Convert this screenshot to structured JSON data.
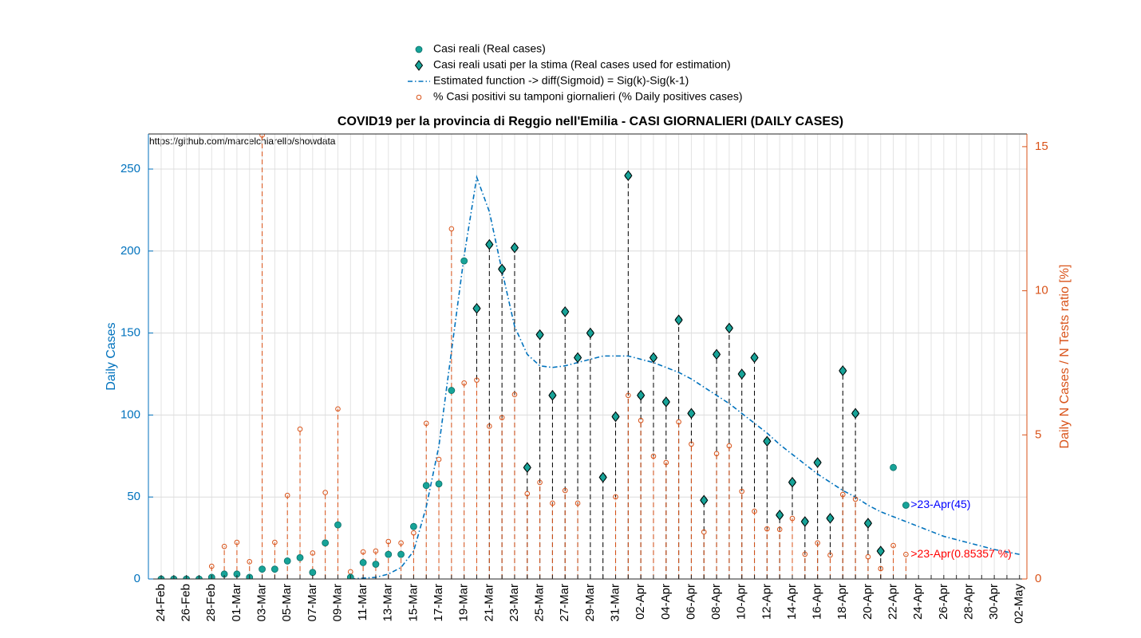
{
  "chart_data": {
    "type": "combo",
    "title": "COVID19 per la provincia di Reggio nell'Emilia - CASI GIORNALIERI (DAILY CASES)",
    "source": "https://github.com/marcelchiarello/showdata",
    "ylabel": "Daily Cases",
    "y2label": "Daily N Cases / N Tests ratio [%]",
    "categories": [
      "24-Feb",
      null,
      "26-Feb",
      null,
      "28-Feb",
      null,
      "01-Mar",
      null,
      "03-Mar",
      null,
      "05-Mar",
      null,
      "07-Mar",
      null,
      "09-Mar",
      null,
      "11-Mar",
      null,
      "13-Mar",
      null,
      "15-Mar",
      null,
      "17-Mar",
      null,
      "19-Mar",
      null,
      "21-Mar",
      null,
      "23-Mar",
      null,
      "25-Mar",
      null,
      "27-Mar",
      null,
      "29-Mar",
      null,
      "31-Mar",
      null,
      "02-Apr",
      null,
      "04-Apr",
      null,
      "06-Apr",
      null,
      "08-Apr",
      null,
      "10-Apr",
      null,
      "12-Apr",
      null,
      "14-Apr",
      null,
      "16-Apr",
      null,
      "18-Apr",
      null,
      "20-Apr",
      null,
      "22-Apr",
      null,
      "24-Apr",
      null,
      "26-Apr",
      null,
      "28-Apr",
      null,
      "30-Apr",
      null,
      "02-May"
    ],
    "ylim": [
      0,
      271.4
    ],
    "yticks": [
      0,
      50,
      100,
      150,
      200,
      250
    ],
    "y2lim": [
      0,
      15.44
    ],
    "y2ticks": [
      0,
      5,
      10,
      15
    ],
    "grid": true,
    "legend": "top",
    "series": [
      {
        "name": "Casi reali (Real cases)",
        "kind": "points",
        "color": "#17a398",
        "values": [
          0,
          0,
          0,
          0,
          1,
          3,
          3,
          1,
          6,
          6,
          11,
          13,
          4,
          22,
          33,
          1,
          10,
          9,
          15,
          15,
          32,
          57,
          58,
          115,
          194,
          165,
          204,
          189,
          202,
          68,
          149,
          112,
          163,
          135,
          150,
          62,
          99,
          246,
          112,
          135,
          108,
          158,
          101,
          48,
          137,
          153,
          125,
          135,
          84,
          39,
          59,
          35,
          71,
          37,
          127,
          101,
          34,
          17,
          68,
          45,
          null,
          null,
          null,
          null,
          null,
          null,
          null,
          null,
          null
        ]
      },
      {
        "name": "Casi reali usati per la stima (Real cases used for estimation)",
        "kind": "diamonds",
        "color": "#000000",
        "values": [
          null,
          null,
          null,
          null,
          null,
          null,
          null,
          null,
          null,
          null,
          null,
          null,
          null,
          null,
          null,
          null,
          null,
          null,
          null,
          null,
          null,
          null,
          null,
          null,
          null,
          165,
          204,
          189,
          202,
          68,
          149,
          112,
          163,
          135,
          150,
          62,
          99,
          246,
          112,
          135,
          108,
          158,
          101,
          48,
          137,
          153,
          125,
          135,
          84,
          39,
          59,
          35,
          71,
          37,
          127,
          101,
          34,
          17,
          null,
          null,
          null,
          null,
          null,
          null,
          null,
          null,
          null,
          null,
          null
        ]
      },
      {
        "name": "Estimated function -> diff(Sigmoid) = Sig(k)-Sig(k-1)",
        "kind": "line",
        "color": "#0072bd",
        "values": [
          null,
          null,
          null,
          null,
          null,
          null,
          null,
          null,
          null,
          null,
          null,
          null,
          null,
          null,
          null,
          0,
          0.5,
          1,
          3,
          7,
          17,
          44,
          81,
          139,
          197,
          245,
          224,
          188,
          154,
          137,
          130,
          129,
          130,
          132,
          134,
          136,
          136,
          136,
          134,
          132,
          129,
          126,
          122,
          117,
          112,
          107,
          101,
          95,
          89,
          82,
          76,
          70,
          64,
          59,
          54,
          50,
          45,
          41,
          38,
          35,
          32,
          29,
          26,
          24,
          22,
          20,
          18,
          16.5,
          15
        ]
      },
      {
        "name": "% Casi positivi su tamponi giornalieri (% Daily positives cases)",
        "kind": "open",
        "axis": "y2",
        "color": "#d95319",
        "values": [
          null,
          null,
          null,
          null,
          0.44,
          1.13,
          1.27,
          0.6,
          15.4,
          1.27,
          2.9,
          5.2,
          0.9,
          3.0,
          5.9,
          0.25,
          0.94,
          0.97,
          1.3,
          1.25,
          1.6,
          5.4,
          4.15,
          12.15,
          6.8,
          6.9,
          5.3,
          5.6,
          6.4,
          2.96,
          3.35,
          2.63,
          3.07,
          2.63,
          null,
          null,
          2.85,
          6.37,
          5.5,
          4.26,
          4.04,
          5.45,
          4.68,
          1.63,
          4.35,
          4.62,
          3.04,
          2.35,
          1.74,
          1.72,
          2.1,
          0.86,
          1.25,
          0.83,
          2.93,
          2.77,
          0.77,
          0.36,
          1.16,
          0.85357,
          null,
          null,
          null,
          null,
          null,
          null,
          null,
          null,
          null
        ]
      }
    ],
    "annotations": [
      {
        "text": ">23-Apr(45)",
        "color": "#0000ff"
      },
      {
        "text": ">23-Apr(0.85357 %)",
        "color": "#ff0000"
      }
    ]
  }
}
